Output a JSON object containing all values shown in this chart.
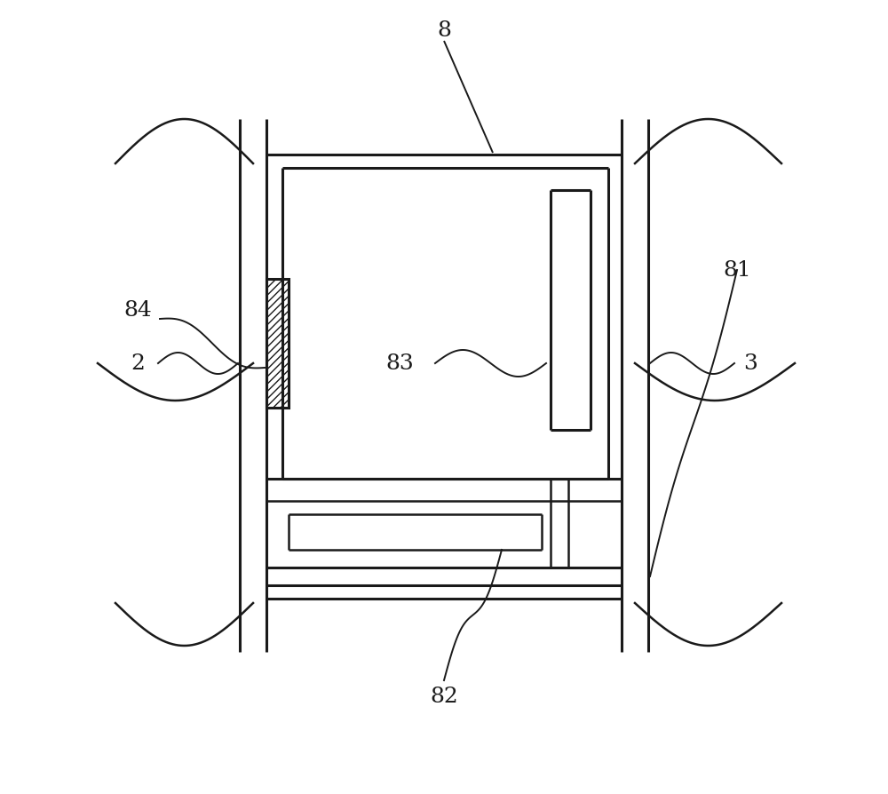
{
  "bg_color": "#ffffff",
  "line_color": "#1a1a1a",
  "lw": 1.8,
  "lw_thick": 2.2,
  "fig_width": 10.0,
  "fig_height": 8.95,
  "label_fontsize": 18
}
